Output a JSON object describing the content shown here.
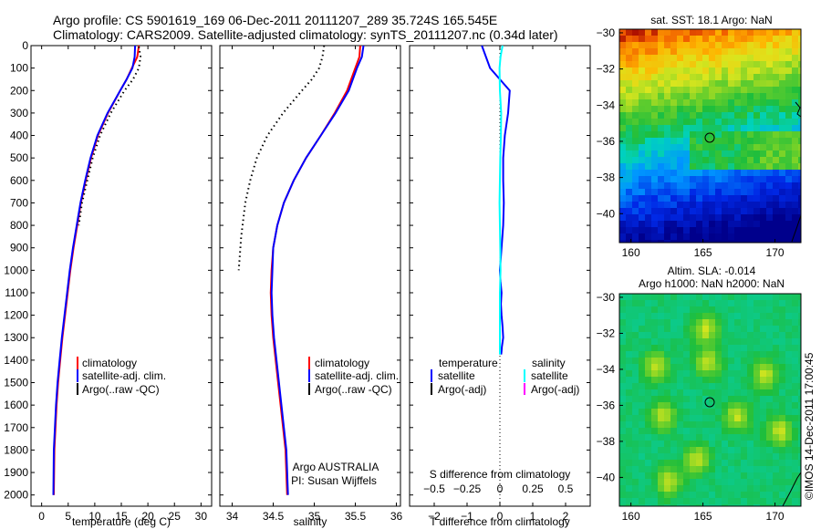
{
  "header": {
    "line1": "Argo profile: CS 5901619_169 06-Dec-2011 20111207_289 35.724S 165.545E",
    "line2": "Climatology: CARS2009. Satellite-adjusted climatology: synTS_20111207.nc (0.34d later)"
  },
  "stamp": "©IMOS 14-Dec-2011 17:00:45",
  "chart_data": [
    {
      "type": "line",
      "xlabel": "temperature (deg C)",
      "xlim": [
        -2,
        32
      ],
      "xticks": [
        0,
        5,
        10,
        15,
        20,
        25,
        30
      ],
      "xtick_labels": [
        "0",
        "5",
        "10",
        "15",
        "20",
        "25",
        "30"
      ],
      "ylim": [
        2050,
        0
      ],
      "yticks": [
        0,
        100,
        200,
        300,
        400,
        500,
        600,
        700,
        800,
        900,
        1000,
        1100,
        1200,
        1300,
        1400,
        1500,
        1600,
        1700,
        1800,
        1900,
        2000
      ],
      "ytick_labels": [
        "0",
        "100",
        "200",
        "300",
        "400",
        "500",
        "600",
        "700",
        "800",
        "900",
        "1000",
        "1100",
        "1200",
        "1300",
        "1400",
        "1500",
        "1600",
        "1700",
        "1800",
        "1900",
        "2000"
      ],
      "legend": {
        "position": "bottom-right",
        "entries": [
          "climatology",
          "satellite-adj. clim.",
          "Argo(..raw -QC)"
        ]
      },
      "series": [
        {
          "name": "climatology",
          "color": "#ff0000",
          "style": "solid",
          "x": [
            18.3,
            18.0,
            17.0,
            16.0,
            14.8,
            12.5,
            10.6,
            9.3,
            8.3,
            7.4,
            6.7,
            6.0,
            5.4,
            4.9,
            4.4,
            3.9,
            3.5,
            3.1,
            2.8,
            2.6,
            2.4,
            2.3
          ],
          "y": [
            0,
            50,
            100,
            150,
            200,
            300,
            400,
            500,
            600,
            700,
            800,
            900,
            1000,
            1100,
            1200,
            1300,
            1400,
            1500,
            1600,
            1700,
            1800,
            2000
          ]
        },
        {
          "name": "satellite-adj. clim.",
          "color": "#0000ff",
          "style": "solid",
          "x": [
            17.6,
            17.5,
            17.1,
            16.0,
            14.8,
            12.4,
            10.5,
            9.2,
            8.2,
            7.3,
            6.6,
            5.9,
            5.3,
            4.8,
            4.3,
            3.8,
            3.4,
            3.0,
            2.7,
            2.5,
            2.3,
            2.2
          ],
          "y": [
            0,
            50,
            100,
            150,
            200,
            300,
            400,
            500,
            600,
            700,
            800,
            900,
            1000,
            1100,
            1200,
            1300,
            1400,
            1500,
            1600,
            1700,
            1800,
            2000
          ]
        },
        {
          "name": "Argo(..raw -QC)",
          "color": "#000000",
          "style": "dotted",
          "x": [
            18.3,
            18.6,
            18.3,
            17.2,
            15.6,
            13.0,
            11.0,
            9.6,
            8.6,
            7.6,
            7.0
          ],
          "y": [
            5,
            50,
            100,
            150,
            200,
            300,
            400,
            500,
            600,
            700,
            800
          ]
        }
      ]
    },
    {
      "type": "line",
      "xlabel": "salinity",
      "xlim": [
        33.85,
        36.05
      ],
      "xticks": [
        34,
        34.5,
        35,
        35.5,
        36
      ],
      "xtick_labels": [
        "34",
        "34.5",
        "35",
        "35.5",
        "36"
      ],
      "ylim": [
        2050,
        0
      ],
      "legend": {
        "position": "bottom-right",
        "entries": [
          "climatology",
          "satellite-adj. clim.",
          "Argo(..raw -QC)"
        ]
      },
      "annotation": {
        "line1": "Argo AUSTRALIA",
        "line2": "PI: Susan Wijffels"
      },
      "series": [
        {
          "name": "climatology",
          "color": "#ff0000",
          "style": "solid",
          "x": [
            35.56,
            35.55,
            35.5,
            35.4,
            35.25,
            35.08,
            34.9,
            34.75,
            34.63,
            34.55,
            34.5,
            34.48,
            34.47,
            34.48,
            34.5,
            34.53,
            34.56,
            34.59,
            34.62,
            34.65,
            34.67
          ],
          "y": [
            0,
            50,
            100,
            200,
            300,
            400,
            500,
            600,
            700,
            800,
            900,
            1000,
            1100,
            1200,
            1300,
            1400,
            1500,
            1600,
            1700,
            1800,
            2000
          ]
        },
        {
          "name": "satellite-adj. clim.",
          "color": "#0000ff",
          "style": "solid",
          "x": [
            35.6,
            35.58,
            35.52,
            35.42,
            35.26,
            35.08,
            34.9,
            34.75,
            34.63,
            34.55,
            34.5,
            34.49,
            34.48,
            34.49,
            34.51,
            34.54,
            34.57,
            34.6,
            34.63,
            34.66,
            34.68
          ],
          "y": [
            0,
            50,
            100,
            200,
            300,
            400,
            500,
            600,
            700,
            800,
            900,
            1000,
            1100,
            1200,
            1300,
            1400,
            1500,
            1600,
            1700,
            1800,
            2000
          ]
        },
        {
          "name": "Argo(..raw -QC)",
          "color": "#000000",
          "style": "dotted",
          "x": [
            35.12,
            35.1,
            35.06,
            34.97,
            34.85,
            34.62,
            34.43,
            34.3,
            34.22,
            34.16,
            34.11,
            34.08
          ],
          "y": [
            0,
            50,
            100,
            150,
            200,
            300,
            400,
            500,
            600,
            700,
            850,
            1000
          ]
        }
      ]
    },
    {
      "type": "line",
      "xlabel_bottom": "T difference from climatology",
      "xlabel_top": "S difference from climatology",
      "xlim": [
        -2.75,
        2.75
      ],
      "xticks": [
        -2,
        -1,
        0,
        1,
        2
      ],
      "xtick_labels": [
        "−2",
        "−1",
        "0",
        "1",
        "2"
      ],
      "s_ticks": [
        -0.5,
        -0.25,
        0,
        0.25,
        0.5
      ],
      "s_tick_labels": [
        "−0.5",
        "−0.25",
        "0",
        "0.25",
        "0.5"
      ],
      "ylim": [
        2050,
        0
      ],
      "legend": {
        "position": "bottom",
        "temperature_title": "temperature",
        "salinity_title": "salinity",
        "temperature_entries": [
          "satellite",
          "Argo(-adj)"
        ],
        "salinity_entries": [
          "satellite",
          "Argo(-adj)"
        ],
        "colors": {
          "t_satellite": "#0000ff",
          "t_argo": "#000000",
          "s_satellite": "#00ffff",
          "s_argo": "#ff00ff"
        }
      },
      "series": [
        {
          "name": "temperature satellite",
          "color": "#0000ff",
          "style": "solid",
          "x": [
            -0.55,
            -0.3,
            0.0,
            0.3,
            0.25,
            0.15,
            0.1,
            0.1,
            0.12,
            0.1,
            0.05,
            0.0,
            0.02,
            0.05,
            0.03,
            0.05,
            0.08,
            0.1,
            0.08,
            0.06,
            0.05,
            0.04
          ],
          "y": [
            0,
            100,
            150,
            200,
            300,
            400,
            500,
            600,
            700,
            800,
            900,
            1000,
            1050,
            1100,
            1150,
            1200,
            1250,
            1300,
            1320,
            1340,
            1360,
            1375
          ]
        },
        {
          "name": "salinity satellite",
          "color": "#00ffff",
          "style": "solid",
          "x": [
            0.08,
            0.02,
            -0.01,
            0.0,
            0.04,
            0.03,
            0.01,
            0.0,
            -0.01,
            0.0,
            0.01,
            0.02,
            0.0,
            0.0,
            0.0
          ],
          "y": [
            0,
            50,
            100,
            200,
            300,
            400,
            500,
            600,
            700,
            800,
            900,
            1000,
            1100,
            1200,
            1375
          ]
        }
      ]
    }
  ],
  "maps": {
    "sst": {
      "title": "sat. SST: 18.1  Argo: NaN",
      "xticks": [
        "160",
        "165",
        "170"
      ],
      "yticks": [
        "−30",
        "−32",
        "−34",
        "−36",
        "−38",
        "−40"
      ]
    },
    "sla": {
      "title1": "Altim. SLA: -0.014",
      "title2": "Argo h1000: NaN  h2000: NaN",
      "xticks": [
        "160",
        "165",
        "170"
      ],
      "yticks": [
        "−30",
        "−32",
        "−34",
        "−36",
        "−38",
        "−40"
      ]
    }
  }
}
